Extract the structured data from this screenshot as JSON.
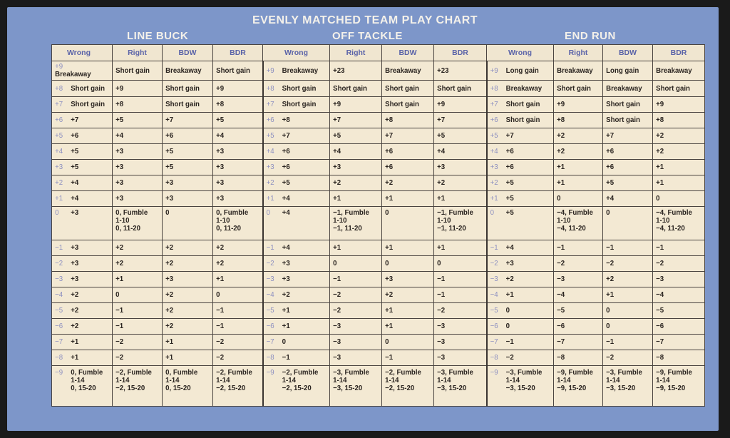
{
  "title": "EVENLY MATCHED TEAM PLAY CHART",
  "sections": [
    "LINE BUCK",
    "OFF TACKLE",
    "END RUN"
  ],
  "columns": [
    "Wrong",
    "Right",
    "BDW",
    "BDR"
  ],
  "colors": {
    "card": "#7d96c9",
    "paper": "#f3e9d3",
    "header_text": "#5a63a8"
  },
  "rows": [
    {
      "label": "+9",
      "cells": [
        "Breakaway",
        "Short gain",
        "Breakaway",
        "Short gain",
        "Breakaway",
        "+23",
        "Breakaway",
        "+23",
        "Long gain",
        "Breakaway",
        "Long gain",
        "Breakaway"
      ]
    },
    {
      "label": "+8",
      "cells": [
        "Short gain",
        "+9",
        "Short gain",
        "+9",
        "Short gain",
        "Short gain",
        "Short gain",
        "Short gain",
        "Breakaway",
        "Short gain",
        "Breakaway",
        "Short gain"
      ]
    },
    {
      "label": "+7",
      "cells": [
        "Short gain",
        "+8",
        "Short gain",
        "+8",
        "Short gain",
        "+9",
        "Short gain",
        "+9",
        "Short gain",
        "+9",
        "Short gain",
        "+9"
      ]
    },
    {
      "label": "+6",
      "cells": [
        "+7",
        "+5",
        "+7",
        "+5",
        "+8",
        "+7",
        "+8",
        "+7",
        "Short gain",
        "+8",
        "Short gain",
        "+8"
      ]
    },
    {
      "label": "+5",
      "cells": [
        "+6",
        "+4",
        "+6",
        "+4",
        "+7",
        "+5",
        "+7",
        "+5",
        "+7",
        "+2",
        "+7",
        "+2"
      ]
    },
    {
      "label": "+4",
      "cells": [
        "+5",
        "+3",
        "+5",
        "+3",
        "+6",
        "+4",
        "+6",
        "+4",
        "+6",
        "+2",
        "+6",
        "+2"
      ]
    },
    {
      "label": "+3",
      "cells": [
        "+5",
        "+3",
        "+5",
        "+3",
        "+6",
        "+3",
        "+6",
        "+3",
        "+6",
        "+1",
        "+6",
        "+1"
      ]
    },
    {
      "label": "+2",
      "cells": [
        "+4",
        "+3",
        "+3",
        "+3",
        "+5",
        "+2",
        "+2",
        "+2",
        "+5",
        "+1",
        "+5",
        "+1"
      ]
    },
    {
      "label": "+1",
      "cells": [
        "+4",
        "+3",
        "+3",
        "+3",
        "+4",
        "+1",
        "+1",
        "+1",
        "+5",
        "0",
        "+4",
        "0"
      ]
    },
    {
      "label": "0",
      "cells": [
        "+3",
        "0, Fumble\n 1-10\n 0, 11-20",
        "0",
        "0, Fumble\n 1-10\n 0, 11-20",
        "+4",
        "−1, Fumble\n 1-10\n  −1, 11-20",
        "0",
        "−1, Fumble\n 1-10\n  −1, 11-20",
        "+5",
        "−4, Fumble\n 1-10\n  −4, 11-20",
        "0",
        "−4, Fumble\n 1-10\n  −4, 11-20"
      ]
    },
    {
      "label": "−1",
      "cells": [
        "+3",
        "+2",
        "+2",
        "+2",
        "+4",
        "+1",
        "+1",
        "+1",
        "+4",
        "−1",
        "−1",
        "−1"
      ]
    },
    {
      "label": "−2",
      "cells": [
        "+3",
        "+2",
        "+2",
        "+2",
        "+3",
        "0",
        "0",
        "0",
        "+3",
        "−2",
        "−2",
        "−2"
      ]
    },
    {
      "label": "−3",
      "cells": [
        "+3",
        "+1",
        "+3",
        "+1",
        "+3",
        "−1",
        "+3",
        "−1",
        "+2",
        "−3",
        "+2",
        "−3"
      ]
    },
    {
      "label": "−4",
      "cells": [
        "+2",
        "0",
        "+2",
        "0",
        "+2",
        "−2",
        "+2",
        "−1",
        "+1",
        "−4",
        "+1",
        "−4"
      ]
    },
    {
      "label": "−5",
      "cells": [
        "+2",
        "−1",
        "+2",
        "−1",
        "+1",
        "−2",
        "+1",
        "−2",
        "0",
        "−5",
        "0",
        "−5"
      ]
    },
    {
      "label": "−6",
      "cells": [
        "+2",
        "−1",
        "+2",
        "−1",
        "+1",
        "−3",
        "+1",
        "−3",
        "0",
        "−6",
        "0",
        "−6"
      ]
    },
    {
      "label": "−7",
      "cells": [
        "+1",
        "−2",
        "+1",
        "−2",
        "0",
        "−3",
        "0",
        "−3",
        "−1",
        "−7",
        "−1",
        "−7"
      ]
    },
    {
      "label": "−8",
      "cells": [
        "+1",
        "−2",
        "+1",
        "−2",
        "−1",
        "−3",
        "−1",
        "−3",
        "−2",
        "−8",
        "−2",
        "−8"
      ]
    },
    {
      "label": "−9",
      "cells": [
        "0, Fumble\n 1-14\n  0, 15-20",
        "−2, Fumble\n 1-14\n  −2, 15-20",
        "0, Fumble\n 1-14\n  0, 15-20",
        "−2, Fumble\n 1-14\n  −2, 15-20",
        "−2, Fumble\n 1-14\n  −2, 15-20",
        "−3, Fumble\n 1-14\n  −3, 15-20",
        "−2, Fumble\n 1-14\n  −2, 15-20",
        "−3, Fumble\n 1-14\n  −3, 15-20",
        "−3, Fumble\n 1-14\n  −3, 15-20",
        "−9, Fumble\n 1-14\n  −9, 15-20",
        "−3, Fumble\n 1-14\n  −3, 15-20",
        "−9, Fumble\n 1-14\n  −9, 15-20"
      ]
    }
  ]
}
